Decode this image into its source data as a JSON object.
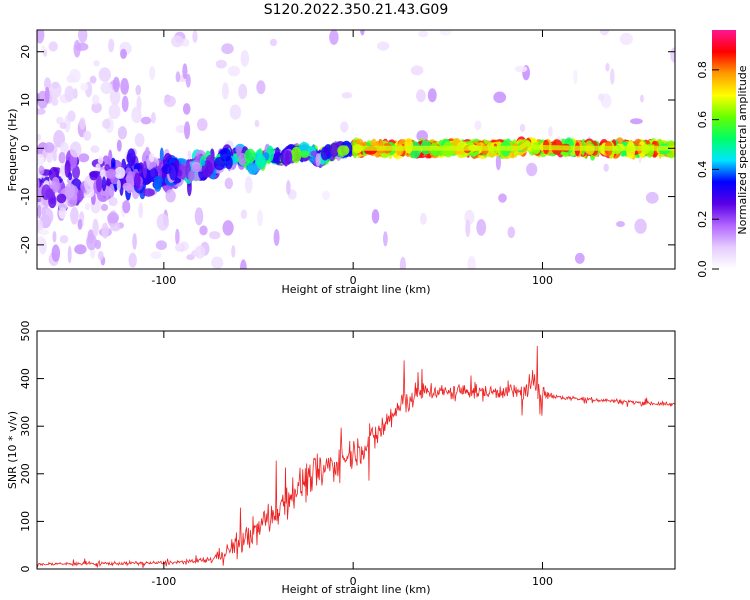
{
  "figure": {
    "title": "S120.2022.350.21.43.G09"
  },
  "chart_data": [
    {
      "type": "heatmap",
      "xlabel": "Height of straight line (km)",
      "ylabel": "Frequency (Hz)",
      "xlim": [
        -167,
        170
      ],
      "ylim": [
        -25,
        24.5
      ],
      "xticks": [
        -100,
        0,
        100
      ],
      "yticks": [
        -20,
        -10,
        0,
        10,
        20
      ],
      "grid": false,
      "colorbar": {
        "label": "Normalized spectral amplitude",
        "range": [
          0.0,
          0.96
        ],
        "ticks": [
          "0.0",
          "0.2",
          "0.4",
          "0.6",
          "0.8"
        ],
        "colormap": [
          "#ffffff",
          "#e6ccff",
          "#b266ff",
          "#5a00e6",
          "#0000ff",
          "#00e5ff",
          "#00ff66",
          "#66ff00",
          "#ffff00",
          "#ff9900",
          "#ff0000",
          "#ff1493"
        ]
      },
      "ridge": {
        "x": [
          -167,
          -150,
          -130,
          -110,
          -95,
          -85,
          -75,
          -68,
          -60,
          -52,
          -45,
          -38,
          -30,
          -25,
          -20,
          -17,
          -14,
          -10,
          -5,
          0,
          10,
          30,
          60,
          88,
          92,
          96,
          120,
          170
        ],
        "y": [
          -7.5,
          -7.0,
          -6.5,
          -6.0,
          -5.5,
          -5.0,
          -3.5,
          -2.5,
          -1.5,
          -3.5,
          -1.5,
          -2.0,
          -1.0,
          -0.8,
          -1.5,
          -2.5,
          -1.0,
          -0.4,
          -0.3,
          0.0,
          0.0,
          0.0,
          0.0,
          0.0,
          1.0,
          0.2,
          0.0,
          0.0
        ]
      },
      "plot_bg": "#ffffff"
    },
    {
      "type": "line",
      "xlabel": "Height of straight line (km)",
      "ylabel": "SNR (10 * v/v)",
      "xlim": [
        -167,
        170
      ],
      "ylim": [
        0,
        500
      ],
      "xticks": [
        -100,
        0,
        100
      ],
      "yticks": [
        0,
        100,
        200,
        300,
        400,
        500
      ],
      "grid": false,
      "color": "#ee2222",
      "envelope": {
        "x": [
          -167,
          -150,
          -120,
          -100,
          -85,
          -75,
          -68,
          -60,
          -50,
          -40,
          -30,
          -20,
          -10,
          0,
          10,
          20,
          25,
          30,
          40,
          50,
          60,
          70,
          80,
          90,
          95,
          98,
          102,
          110,
          130,
          150,
          170
        ],
        "mean": [
          10,
          11,
          12,
          13,
          15,
          20,
          35,
          55,
          85,
          125,
          170,
          200,
          220,
          245,
          270,
          320,
          340,
          360,
          375,
          370,
          375,
          370,
          375,
          370,
          385,
          390,
          365,
          360,
          355,
          350,
          345
        ],
        "spread": [
          7,
          7,
          7,
          7,
          9,
          14,
          30,
          45,
          60,
          70,
          75,
          70,
          65,
          60,
          60,
          60,
          60,
          55,
          35,
          30,
          30,
          30,
          30,
          40,
          60,
          70,
          15,
          8,
          8,
          8,
          8
        ]
      }
    }
  ]
}
